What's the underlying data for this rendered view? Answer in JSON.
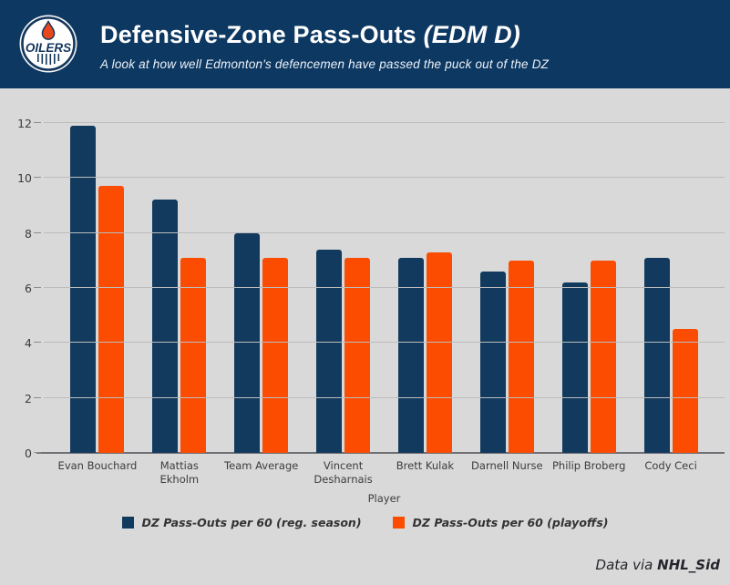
{
  "header": {
    "title": "Defensive-Zone Pass-Outs",
    "title_suffix": " (EDM D)",
    "subtitle": "A look at how well Edmonton's defencemen have passed the puck out of the DZ",
    "logo_text": "OILERS",
    "bg_color": "#0d3862"
  },
  "footer": {
    "prefix": "Data via ",
    "handle": "NHL_Sid"
  },
  "colors": {
    "header_navy": "#0d3862",
    "chart_background": "#d9d9d9",
    "gridline": "#bcbcbc",
    "axis_line": "#6e6e73",
    "bar_navy": "#123a5e",
    "bar_orange": "#fb4c02",
    "logo_drop_orange": "#e8481c"
  },
  "chart_data": {
    "type": "bar",
    "title": "Defensive-Zone Pass-Outs (EDM D)",
    "xlabel": "Player",
    "ylabel": "",
    "ylim": [
      0,
      12
    ],
    "ytick_step": 2,
    "grid": true,
    "legend_position": "bottom",
    "categories": [
      "Evan Bouchard",
      "Mattias\nEkholm",
      "Team Average",
      "Vincent\nDesharnais",
      "Brett Kulak",
      "Darnell Nurse",
      "Philip Broberg",
      "Cody Ceci"
    ],
    "series": [
      {
        "name": "DZ Pass-Outs per 60 (reg. season)",
        "color": "#123a5e",
        "values": [
          11.9,
          9.2,
          8.0,
          7.4,
          7.1,
          6.6,
          6.2,
          7.1
        ]
      },
      {
        "name": "DZ Pass-Outs per 60 (playoffs)",
        "color": "#fb4c02",
        "values": [
          9.7,
          7.1,
          7.1,
          7.1,
          7.3,
          7.0,
          7.0,
          4.5
        ]
      }
    ]
  }
}
